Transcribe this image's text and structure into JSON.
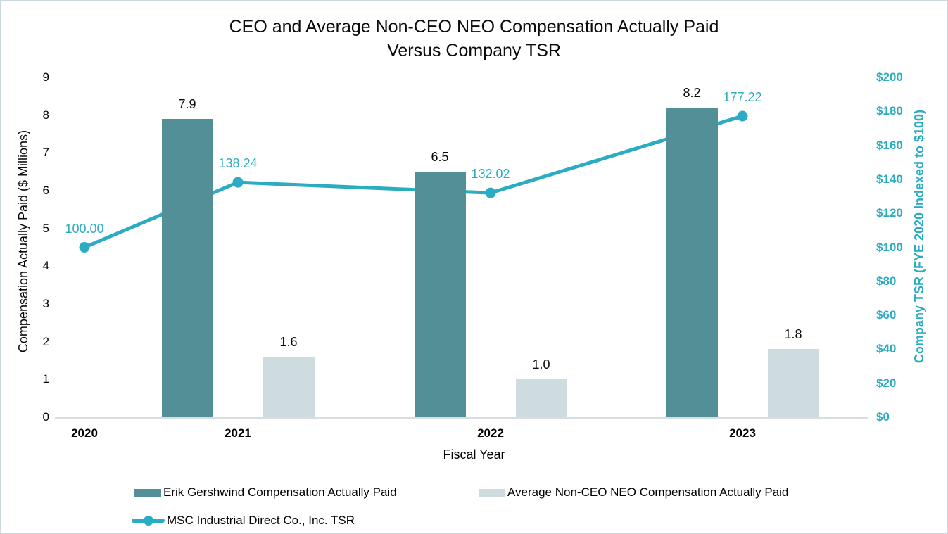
{
  "display": {
    "title_line1": "CEO and Average Non-CEO NEO Compensation Actually Paid",
    "title_line2": "Versus Company TSR"
  },
  "chart_data": {
    "type": "bar",
    "subtype": "combo: two bar series on left axis + one line series on right axis",
    "title": "CEO and Average Non-CEO NEO Compensation Actually Paid Versus Company TSR",
    "xlabel": "Fiscal Year",
    "ylabel_left": "Compensation Actually Paid ($ Millions)",
    "ylabel_right": "Company TSR (FYE 2020 Indexed to $100)",
    "categories": [
      "2020",
      "2021",
      "2022",
      "2023"
    ],
    "series": [
      {
        "key": "ceo",
        "name": "Erik Gershwind Compensation Actually Paid",
        "chart_type": "bar",
        "axis": "left",
        "color": "#538f97",
        "values": [
          null,
          7.9,
          6.5,
          8.2
        ],
        "labels": [
          "",
          "7.9",
          "6.5",
          "8.2"
        ]
      },
      {
        "key": "neo",
        "name": "Average Non-CEO NEO Compensation Actually Paid",
        "chart_type": "bar",
        "axis": "left",
        "color": "#cedce0",
        "values": [
          null,
          1.6,
          1.0,
          1.8
        ],
        "labels": [
          "",
          "1.6",
          "1.0",
          "1.8"
        ]
      },
      {
        "key": "tsr",
        "name": "MSC Industrial Direct Co., Inc. TSR",
        "chart_type": "line",
        "axis": "right",
        "color": "#2bacc2",
        "values": [
          100.0,
          138.24,
          132.02,
          177.22
        ],
        "labels": [
          "100.00",
          "138.24",
          "132.02",
          "177.22"
        ]
      }
    ],
    "ylim_left": [
      0,
      9
    ],
    "ylim_right": [
      0,
      200
    ],
    "yticks_left": [
      "9",
      "8",
      "7",
      "6",
      "5",
      "4",
      "3",
      "2",
      "1",
      "0"
    ],
    "yticks_right": [
      "$200",
      "$180",
      "$160",
      "$140",
      "$120",
      "$100",
      "$80",
      "$60",
      "$40",
      "$20",
      "$0"
    ],
    "gridlines": "off",
    "legend_position": "bottom",
    "colors": {
      "accent_teal": "#2bacc2",
      "bar_dark": "#538f97",
      "bar_light": "#cedce0",
      "axis_line": "#d8dde0",
      "text": "#0b0b0b"
    }
  }
}
